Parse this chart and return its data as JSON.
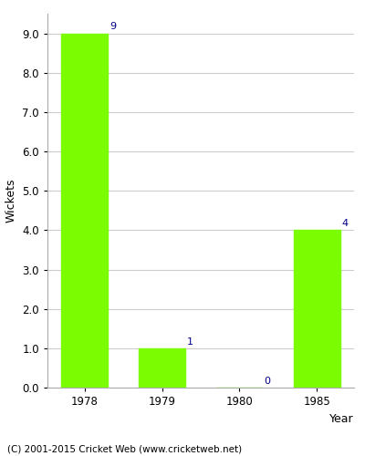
{
  "categories": [
    "1978",
    "1979",
    "1980",
    "1985"
  ],
  "values": [
    9,
    1,
    0,
    4
  ],
  "bar_color": "#7CFC00",
  "xlabel": "Year",
  "ylabel": "Wickets",
  "ylim": [
    0,
    9.5
  ],
  "yticks": [
    0.0,
    1.0,
    2.0,
    3.0,
    4.0,
    5.0,
    6.0,
    7.0,
    8.0,
    9.0
  ],
  "annotation_color": "#00008B",
  "annotation_fontsize": 8,
  "label_fontsize": 9,
  "tick_fontsize": 8.5,
  "footer_text": "(C) 2001-2015 Cricket Web (www.cricketweb.net)",
  "footer_fontsize": 7.5,
  "background_color": "#ffffff",
  "grid_color": "#cccccc",
  "bar_width": 0.6
}
